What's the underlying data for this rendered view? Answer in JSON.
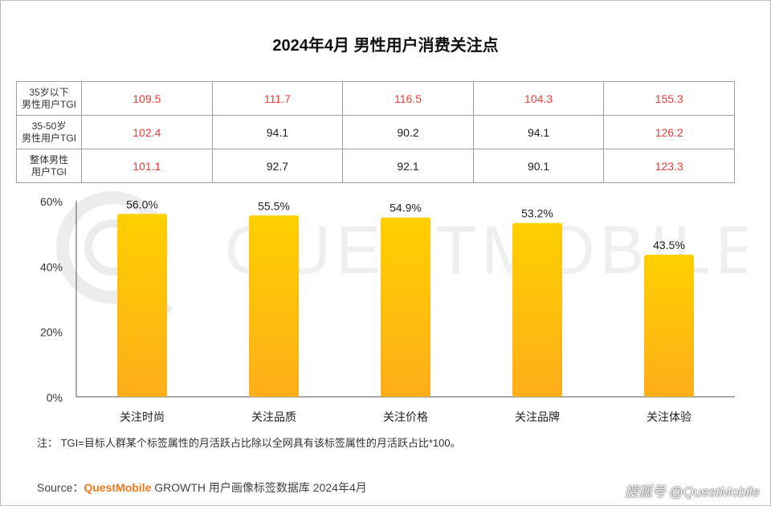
{
  "title": "2024年4月 男性用户消费关注点",
  "tgi_table": {
    "rows": [
      {
        "label": "35岁以下\n男性用户TGI",
        "values": [
          "109.5",
          "111.7",
          "116.5",
          "104.3",
          "155.3"
        ],
        "highlight": [
          true,
          true,
          true,
          true,
          true
        ]
      },
      {
        "label": "35-50岁\n男性用户TGI",
        "values": [
          "102.4",
          "94.1",
          "90.2",
          "94.1",
          "126.2"
        ],
        "highlight": [
          true,
          false,
          false,
          false,
          true
        ]
      },
      {
        "label": "整体男性\n用户TGI",
        "values": [
          "101.1",
          "92.7",
          "92.1",
          "90.1",
          "123.3"
        ],
        "highlight": [
          true,
          false,
          false,
          false,
          true
        ]
      }
    ],
    "highlight_color": "#e8403a"
  },
  "chart_data": {
    "type": "bar",
    "categories": [
      "关注时尚",
      "关注品质",
      "关注价格",
      "关注品牌",
      "关注体验"
    ],
    "values": [
      56.0,
      55.5,
      54.9,
      53.2,
      43.5
    ],
    "data_labels": [
      "56.0%",
      "55.5%",
      "54.9%",
      "53.2%",
      "43.5%"
    ],
    "ylim": [
      0,
      60
    ],
    "yticks": [
      0,
      20,
      40,
      60
    ],
    "ytick_labels": [
      "0%",
      "20%",
      "40%",
      "60%"
    ],
    "bar_color_top": "#ffd000",
    "bar_color_bottom": "#ffae1a",
    "grid": false
  },
  "note": "注： TGI=目标人群某个标签属性的月活跃占比除以全网具有该标签属性的月活跃占比*100。",
  "source": {
    "prefix": "Source：",
    "brand": "QuestMobile",
    "text": " GROWTH 用户画像标签数据库 2024年4月"
  },
  "watermark_text": "QUESTMOBILE",
  "credit": "搜狐号 @QuestMobile"
}
